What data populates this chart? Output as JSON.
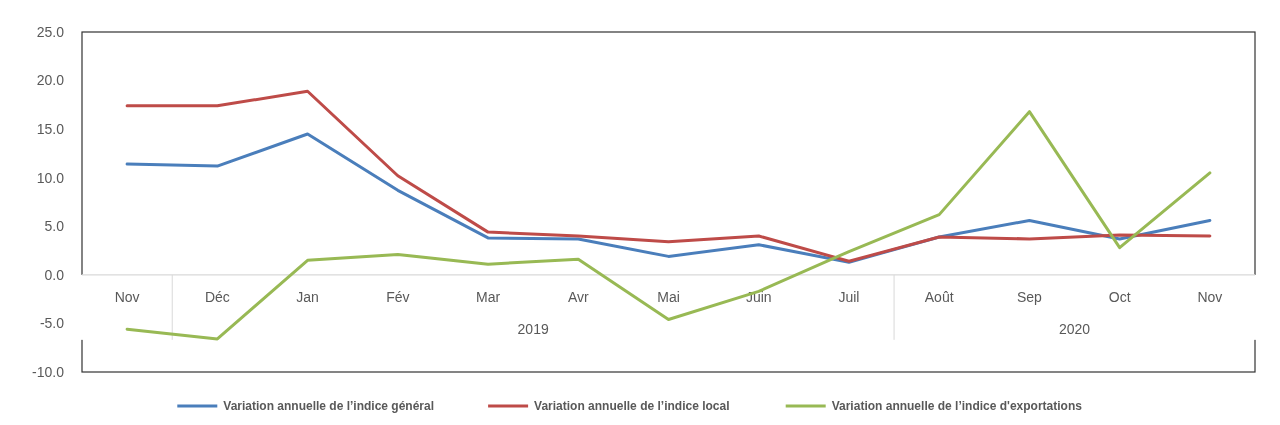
{
  "chart_data": {
    "type": "line",
    "categories": [
      "Nov",
      "Déc",
      "Jan",
      "Fév",
      "Mar",
      "Avr",
      "Mai",
      "Juin",
      "Juil",
      "Août",
      "Sep",
      "Oct",
      "Nov"
    ],
    "series": [
      {
        "name": "Variation annuelle de l’indice général",
        "color": "#4a7ebb",
        "values": [
          11.4,
          11.2,
          14.5,
          8.7,
          3.8,
          3.7,
          1.9,
          3.1,
          1.3,
          3.9,
          5.6,
          3.7,
          5.6
        ]
      },
      {
        "name": "Variation annuelle de l’indice local",
        "color": "#be4b48",
        "values": [
          17.4,
          17.4,
          18.9,
          10.2,
          4.4,
          4.0,
          3.4,
          4.0,
          1.4,
          3.9,
          3.7,
          4.1,
          4.0
        ]
      },
      {
        "name": "Variation annuelle de l’indice d'exportations",
        "color": "#98b954",
        "values": [
          -5.6,
          -6.6,
          1.5,
          2.1,
          1.1,
          1.6,
          -4.6,
          -1.7,
          2.4,
          6.2,
          16.8,
          2.8,
          10.5
        ]
      }
    ],
    "ylim": [
      -10,
      25
    ],
    "yticks": [
      {
        "value": -10,
        "label": "-10.0"
      },
      {
        "value": -5,
        "label": "-5.0"
      },
      {
        "value": 0,
        "label": "0.0"
      },
      {
        "value": 5,
        "label": "5.0"
      },
      {
        "value": 10,
        "label": "10.0"
      },
      {
        "value": 15,
        "label": "15.0"
      },
      {
        "value": 20,
        "label": "20.0"
      },
      {
        "value": 25,
        "label": "25.0"
      }
    ],
    "annotations": [
      "2019",
      "2020"
    ],
    "legend": "bottom",
    "marker": "none",
    "line_style": "solid"
  }
}
